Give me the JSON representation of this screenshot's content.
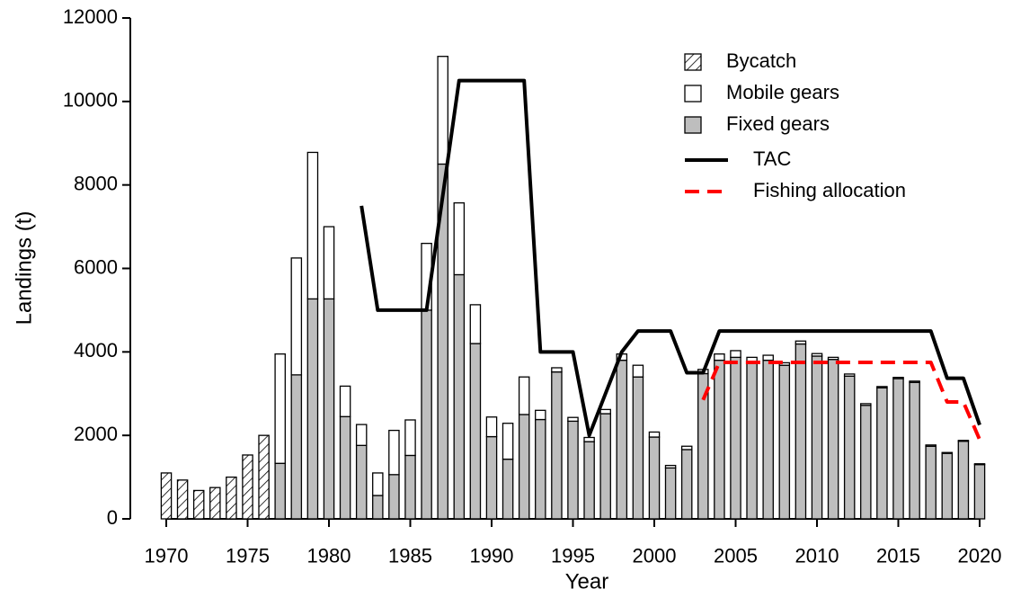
{
  "chart_data": {
    "type": "bar",
    "xlabel": "Year",
    "ylabel": "Landings (t)",
    "x": [
      1970,
      1971,
      1972,
      1973,
      1974,
      1975,
      1976,
      1977,
      1978,
      1979,
      1980,
      1981,
      1982,
      1983,
      1984,
      1985,
      1986,
      1987,
      1988,
      1989,
      1990,
      1991,
      1992,
      1993,
      1994,
      1995,
      1996,
      1997,
      1998,
      1999,
      2000,
      2001,
      2002,
      2003,
      2004,
      2005,
      2006,
      2007,
      2008,
      2009,
      2010,
      2011,
      2012,
      2013,
      2014,
      2015,
      2016,
      2017,
      2018,
      2019,
      2020
    ],
    "xlim": [
      1970,
      2020
    ],
    "xticks": [
      1970,
      1975,
      1980,
      1985,
      1990,
      1995,
      2000,
      2005,
      2010,
      2015,
      2020
    ],
    "ylim": [
      0,
      12000
    ],
    "yticks": [
      0,
      2000,
      4000,
      6000,
      8000,
      10000,
      12000
    ],
    "legend": "top-right",
    "series": [
      {
        "name": "Bycatch",
        "type": "bar",
        "pattern": "hatch",
        "color": "#000000",
        "values": [
          1100,
          930,
          680,
          750,
          1000,
          1530,
          2000,
          null,
          null,
          null,
          null,
          null,
          null,
          null,
          null,
          null,
          null,
          null,
          null,
          null,
          null,
          null,
          null,
          null,
          null,
          null,
          null,
          null,
          null,
          null,
          null,
          null,
          null,
          null,
          null,
          null,
          null,
          null,
          null,
          null,
          null,
          null,
          null,
          null,
          null,
          null,
          null,
          null,
          null,
          null,
          null
        ]
      },
      {
        "name": "Mobile gears",
        "type": "bar",
        "color": "#ffffff",
        "values": [
          null,
          null,
          null,
          null,
          null,
          null,
          null,
          2620,
          2800,
          3510,
          1730,
          730,
          500,
          540,
          1060,
          850,
          1600,
          2580,
          1720,
          930,
          470,
          860,
          900,
          220,
          100,
          90,
          100,
          100,
          150,
          280,
          120,
          60,
          80,
          100,
          150,
          160,
          110,
          120,
          60,
          70,
          60,
          50,
          50,
          40,
          30,
          30,
          30,
          30,
          20,
          20,
          20
        ]
      },
      {
        "name": "Fixed gears",
        "type": "bar",
        "color": "#bebebe",
        "values": [
          null,
          null,
          null,
          null,
          null,
          null,
          null,
          1330,
          3450,
          5270,
          5270,
          2450,
          1760,
          560,
          1060,
          1520,
          5000,
          8500,
          5850,
          4200,
          1970,
          1430,
          2500,
          2380,
          3520,
          2340,
          1850,
          2520,
          3800,
          3400,
          1960,
          1220,
          1660,
          3480,
          3800,
          3870,
          3760,
          3800,
          3680,
          4190,
          3900,
          3820,
          3420,
          2720,
          3140,
          3360,
          3270,
          1740,
          1570,
          1860,
          1300
        ]
      },
      {
        "name": "TAC",
        "type": "line",
        "color": "#000000",
        "x": [
          1982,
          1983,
          1986,
          1988,
          1992,
          1993,
          1995,
          1996,
          1998,
          1999,
          2001,
          2002,
          2003,
          2004,
          2017,
          2018,
          2019,
          2020
        ],
        "values": [
          7500,
          5000,
          5000,
          10500,
          10500,
          4000,
          4000,
          2000,
          4000,
          4500,
          4500,
          3500,
          3500,
          4500,
          4500,
          3370,
          3370,
          2250
        ]
      },
      {
        "name": "Fishing allocation",
        "type": "line",
        "dash": true,
        "color": "#ff0000",
        "x": [
          2003,
          2004,
          2017,
          2018,
          2019,
          2020
        ],
        "values": [
          2850,
          3750,
          3750,
          2800,
          2800,
          1900
        ]
      }
    ]
  }
}
